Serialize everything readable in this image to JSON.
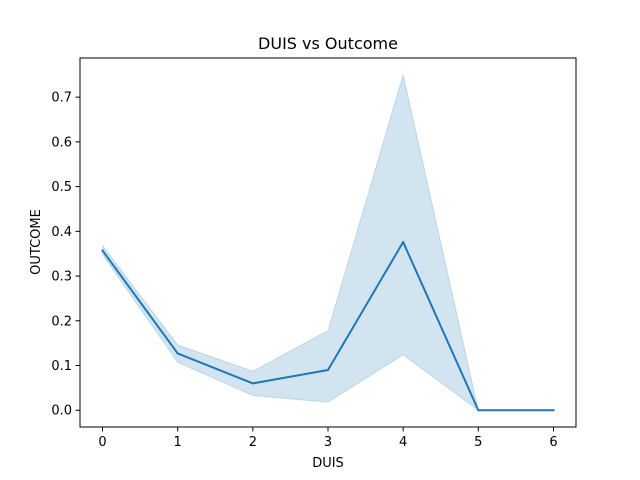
{
  "chart_data": {
    "type": "line",
    "title": "DUIS vs Outcome",
    "xlabel": "DUIS",
    "ylabel": "OUTCOME",
    "x": [
      0,
      1,
      2,
      3,
      4,
      5,
      6
    ],
    "xticks": [
      "0",
      "1",
      "2",
      "3",
      "4",
      "5",
      "6"
    ],
    "yticks": [
      "0.0",
      "0.1",
      "0.2",
      "0.3",
      "0.4",
      "0.5",
      "0.6",
      "0.7"
    ],
    "xlim": [
      -0.3,
      6.3
    ],
    "ylim": [
      -0.0375,
      0.7875
    ],
    "grid": false,
    "series": [
      {
        "values": [
          0.357,
          0.127,
          0.06,
          0.09,
          0.376,
          0.0,
          0.0
        ],
        "ci_lower": [
          0.348,
          0.107,
          0.033,
          0.018,
          0.124,
          0.0,
          0.0
        ],
        "ci_upper": [
          0.368,
          0.146,
          0.087,
          0.178,
          0.75,
          0.0,
          0.0
        ],
        "color": "#1f77b4"
      }
    ]
  }
}
